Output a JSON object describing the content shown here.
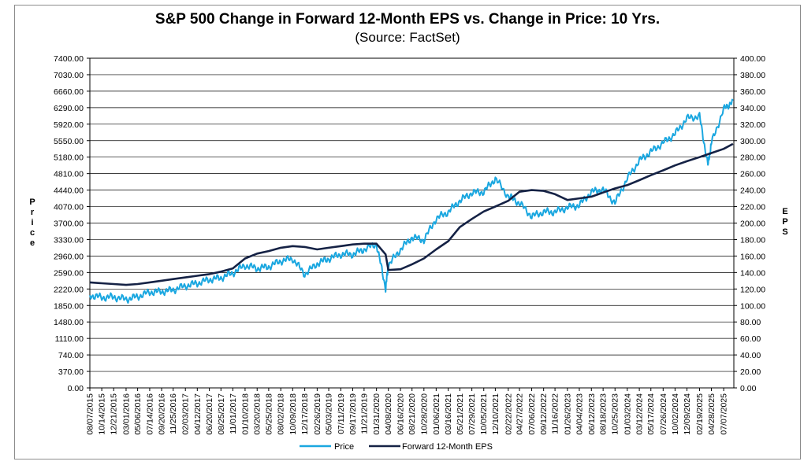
{
  "chart_data": {
    "type": "line",
    "title": "S&P 500 Change in Forward 12-Month EPS vs. Change in Price: 10 Yrs.",
    "subtitle": "(Source: FactSet)",
    "ylabel_left": "Price",
    "ylabel_right": "EPS",
    "ylim_left": [
      0,
      7400
    ],
    "ylim_right": [
      0,
      400
    ],
    "yticks_left": [
      "7400.00",
      "7030.00",
      "6660.00",
      "6290.00",
      "5920.00",
      "5550.00",
      "5180.00",
      "4810.00",
      "4440.00",
      "4070.00",
      "3700.00",
      "3330.00",
      "2960.00",
      "2590.00",
      "2220.00",
      "1850.00",
      "1480.00",
      "1110.00",
      "740.00",
      "370.00",
      "0.00"
    ],
    "yticks_right": [
      "400.00",
      "380.00",
      "360.00",
      "340.00",
      "320.00",
      "300.00",
      "280.00",
      "260.00",
      "240.00",
      "220.00",
      "200.00",
      "180.00",
      "160.00",
      "140.00",
      "120.00",
      "100.00",
      "80.00",
      "60.00",
      "40.00",
      "20.00",
      "0.00"
    ],
    "xticks": [
      "08/07/2015",
      "10/14/2015",
      "12/21/2015",
      "03/01/2016",
      "05/06/2016",
      "07/14/2016",
      "09/20/2016",
      "11/25/2016",
      "02/03/2017",
      "04/12/2017",
      "06/20/2017",
      "08/25/2017",
      "11/01/2017",
      "01/10/2018",
      "03/20/2018",
      "05/25/2018",
      "08/02/2018",
      "10/09/2018",
      "12/17/2018",
      "02/26/2019",
      "05/03/2019",
      "07/11/2019",
      "09/17/2019",
      "11/21/2019",
      "01/31/2020",
      "04/08/2020",
      "06/16/2020",
      "08/21/2020",
      "10/28/2020",
      "01/06/2021",
      "03/16/2021",
      "05/21/2021",
      "07/29/2021",
      "10/05/2021",
      "12/10/2021",
      "02/22/2022",
      "04/27/2022",
      "07/06/2022",
      "09/12/2022",
      "11/16/2022",
      "01/26/2023",
      "04/04/2023",
      "06/12/2023",
      "08/18/2023",
      "10/25/2023",
      "01/03/2024",
      "03/12/2024",
      "05/17/2024",
      "07/26/2024",
      "10/02/2024",
      "12/09/2024",
      "02/19/2025",
      "04/28/2025",
      "07/07/2025"
    ],
    "series": [
      {
        "name": "Price",
        "axis": "left",
        "color": "#1aa7e0",
        "x": [
          "08/07/2015",
          "10/14/2015",
          "12/21/2015",
          "03/01/2016",
          "05/06/2016",
          "07/14/2016",
          "09/20/2016",
          "11/25/2016",
          "02/03/2017",
          "04/12/2017",
          "06/20/2017",
          "08/25/2017",
          "11/01/2017",
          "01/10/2018",
          "03/20/2018",
          "05/25/2018",
          "08/02/2018",
          "10/09/2018",
          "12/17/2018",
          "02/26/2019",
          "05/03/2019",
          "07/11/2019",
          "09/17/2019",
          "11/21/2019",
          "01/31/2020",
          "03/23/2020",
          "04/08/2020",
          "06/16/2020",
          "08/21/2020",
          "10/28/2020",
          "01/06/2021",
          "03/16/2021",
          "05/21/2021",
          "07/29/2021",
          "10/05/2021",
          "12/10/2021",
          "02/22/2022",
          "04/27/2022",
          "07/06/2022",
          "09/12/2022",
          "11/16/2022",
          "01/26/2023",
          "04/04/2023",
          "06/12/2023",
          "08/18/2023",
          "10/25/2023",
          "01/03/2024",
          "03/12/2024",
          "05/17/2024",
          "07/26/2024",
          "10/02/2024",
          "12/09/2024",
          "02/19/2025",
          "04/08/2025",
          "04/28/2025",
          "07/07/2025",
          "08/29/2025"
        ],
        "values": [
          2080,
          2030,
          2040,
          1990,
          2050,
          2150,
          2160,
          2200,
          2290,
          2350,
          2430,
          2470,
          2580,
          2750,
          2680,
          2720,
          2850,
          2900,
          2550,
          2790,
          2900,
          3000,
          3000,
          3110,
          3230,
          2240,
          2750,
          3110,
          3380,
          3320,
          3800,
          3950,
          4200,
          4380,
          4400,
          4700,
          4300,
          4150,
          3850,
          3950,
          3950,
          4050,
          4100,
          4400,
          4450,
          4150,
          4700,
          5100,
          5300,
          5500,
          5700,
          6050,
          6100,
          5000,
          5500,
          6250,
          6450
        ]
      },
      {
        "name": "Forward 12-Month EPS",
        "axis": "right",
        "color": "#152245",
        "x": [
          "08/07/2015",
          "10/14/2015",
          "12/21/2015",
          "03/01/2016",
          "05/06/2016",
          "07/14/2016",
          "09/20/2016",
          "11/25/2016",
          "02/03/2017",
          "04/12/2017",
          "06/20/2017",
          "08/25/2017",
          "11/01/2017",
          "01/10/2018",
          "03/20/2018",
          "05/25/2018",
          "08/02/2018",
          "10/09/2018",
          "12/17/2018",
          "02/26/2019",
          "05/03/2019",
          "07/11/2019",
          "09/17/2019",
          "11/21/2019",
          "01/31/2020",
          "03/23/2020",
          "04/08/2020",
          "06/16/2020",
          "08/21/2020",
          "10/28/2020",
          "01/06/2021",
          "03/16/2021",
          "05/21/2021",
          "07/29/2021",
          "10/05/2021",
          "12/10/2021",
          "02/22/2022",
          "04/27/2022",
          "07/06/2022",
          "09/12/2022",
          "11/16/2022",
          "01/26/2023",
          "04/04/2023",
          "06/12/2023",
          "08/18/2023",
          "10/25/2023",
          "01/03/2024",
          "03/12/2024",
          "05/17/2024",
          "07/26/2024",
          "10/02/2024",
          "12/09/2024",
          "02/19/2025",
          "04/28/2025",
          "07/07/2025",
          "08/29/2025"
        ],
        "values": [
          128,
          127,
          126,
          125,
          126,
          128,
          130,
          132,
          134,
          136,
          138,
          141,
          145,
          157,
          163,
          166,
          170,
          172,
          171,
          168,
          170,
          172,
          174,
          175,
          175,
          162,
          143,
          144,
          150,
          157,
          168,
          178,
          195,
          205,
          214,
          220,
          227,
          238,
          240,
          239,
          235,
          228,
          230,
          232,
          237,
          242,
          246,
          252,
          258,
          264,
          270,
          275,
          280,
          285,
          290,
          296
        ]
      }
    ],
    "legend": {
      "position": "bottom",
      "entries": [
        "Price",
        "Forward 12-Month EPS"
      ]
    },
    "grid": true
  }
}
